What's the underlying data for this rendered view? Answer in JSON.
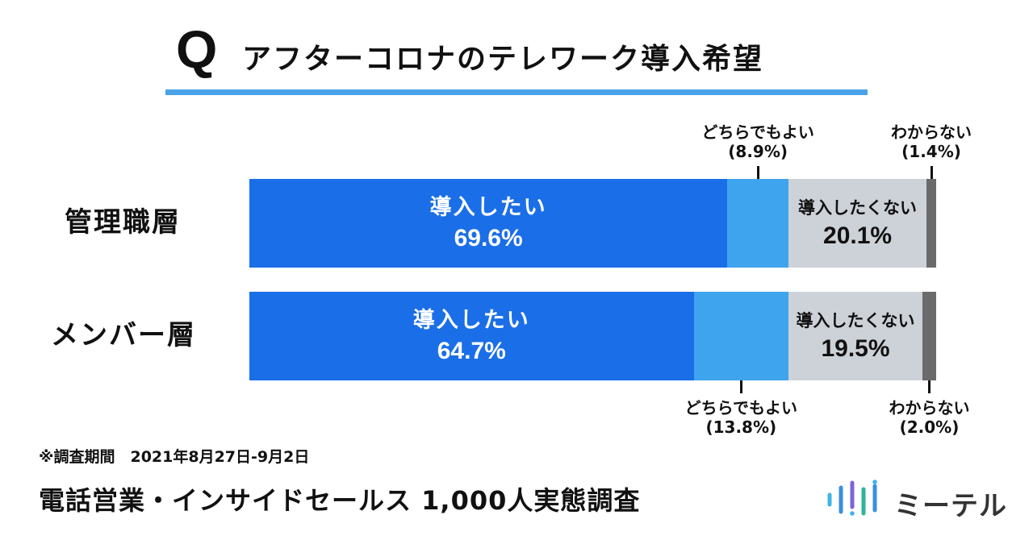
{
  "title": {
    "q": "Q",
    "text": "アフターコロナのテレワーク導入希望"
  },
  "colors": {
    "accent": "#4aa3e8",
    "want": "#1a6ee8",
    "either": "#3fa4ee",
    "not_want": "#cdd1d8",
    "unknown": "#6b6b6b"
  },
  "chart_data": {
    "type": "bar",
    "stacked": true,
    "orientation": "horizontal",
    "categories": [
      "管理職層",
      "メンバー層"
    ],
    "series": [
      {
        "name": "導入したい",
        "values": [
          69.6,
          64.7
        ]
      },
      {
        "name": "どちらでもよい",
        "values": [
          8.9,
          13.8
        ]
      },
      {
        "name": "導入したくない",
        "values": [
          20.1,
          19.5
        ]
      },
      {
        "name": "わからない",
        "values": [
          1.4,
          2.0
        ]
      }
    ],
    "value_labels": [
      [
        "69.6%",
        "(8.9%)",
        "20.1%",
        "(1.4%)"
      ],
      [
        "64.7%",
        "(13.8%)",
        "19.5%",
        "(2.0%)"
      ]
    ],
    "xlim": [
      0,
      100
    ]
  },
  "note": "※調査期間　2021年8月27日-9月2日",
  "footer": "電話営業・インサイドセールス 1,000人実態調査",
  "logo": {
    "name": "ミーテル",
    "icon": "audio-wave-icon"
  }
}
